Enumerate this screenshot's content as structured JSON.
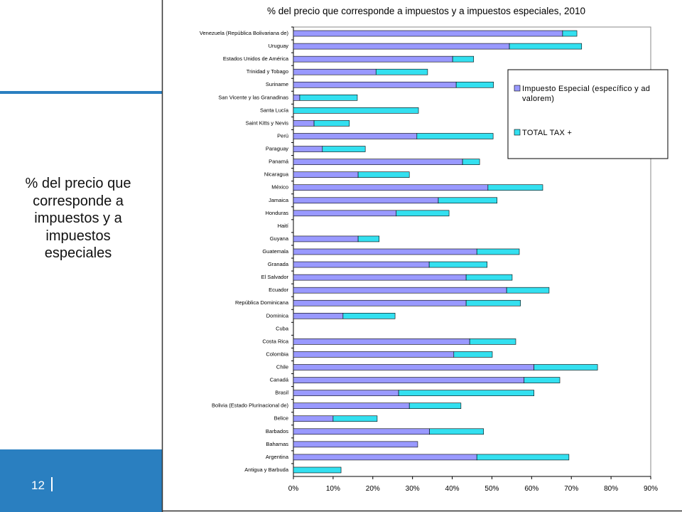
{
  "chart_data": {
    "type": "stacked_barh",
    "title": "% del precio que corresponde a impuestos y a impuestos especiales, 2010",
    "categories": [
      "Venezuela (República Bolivariana de)",
      "Uruguay",
      "Estados Unidos de América",
      "Trinidad y Tobago",
      "Suriname",
      "San Vicente y las Granadinas",
      "Santa Lucía",
      "Saint Kitts y Nevis",
      "Perú",
      "Paraguay",
      "Panamá",
      "Nicaragua",
      "México",
      "Jamaica",
      "Honduras",
      "Haití",
      "Guyana",
      "Guatemala",
      "Granada",
      "El Salvador",
      "Ecuador",
      "República Dominicana",
      "Dominica",
      "Cuba",
      "Costa Rica",
      "Colombia",
      "Chile",
      "Canadá",
      "Brasil",
      "Bolivia (Estado Plurinacional de)",
      "Belice",
      "Barbados",
      "Bahamas",
      "Argentina",
      "Antigua y Barbuda"
    ],
    "series": [
      {
        "name": "Impuesto Especial (específico y ad valorem)",
        "color": "#9999ff",
        "values": [
          67.8,
          54.4,
          40.1,
          20.8,
          41.0,
          1.6,
          0,
          5.2,
          31.1,
          7.3,
          42.6,
          16.3,
          49.0,
          36.5,
          25.9,
          null,
          16.3,
          46.2,
          34.2,
          43.5,
          53.7,
          43.5,
          12.5,
          null,
          44.4,
          40.4,
          60.6,
          58.1,
          26.5,
          29.2,
          10.0,
          34.3,
          31.3,
          46.2,
          0
        ]
      },
      {
        "name": "TOTAL TAX +",
        "color": "#33e0f0",
        "values": [
          3.6,
          18.2,
          5.3,
          13.0,
          9.4,
          14.5,
          31.5,
          8.9,
          19.2,
          10.8,
          4.3,
          12.9,
          13.8,
          14.8,
          13.3,
          null,
          5.3,
          10.7,
          14.6,
          11.6,
          10.7,
          13.7,
          13.1,
          null,
          11.6,
          9.7,
          16.0,
          9.0,
          34.1,
          13.0,
          11.1,
          13.6,
          0,
          23.2,
          12.0
        ]
      }
    ],
    "xlim": [
      0,
      90
    ],
    "xticks": [
      {
        "value": 0,
        "label": "0%"
      },
      {
        "value": 10,
        "label": "10%"
      },
      {
        "value": 20,
        "label": "20%"
      },
      {
        "value": 30,
        "label": "30%"
      },
      {
        "value": 40,
        "label": "40%"
      },
      {
        "value": 50,
        "label": "50%"
      },
      {
        "value": 60,
        "label": "60%"
      },
      {
        "value": 70,
        "label": "70%"
      },
      {
        "value": 80,
        "label": "80%"
      },
      {
        "value": 90,
        "label": "90%"
      }
    ],
    "legend": "upper right"
  },
  "side_text": "% del precio que corresponde a impuestos y a impuestos especiales",
  "page_number": "12"
}
